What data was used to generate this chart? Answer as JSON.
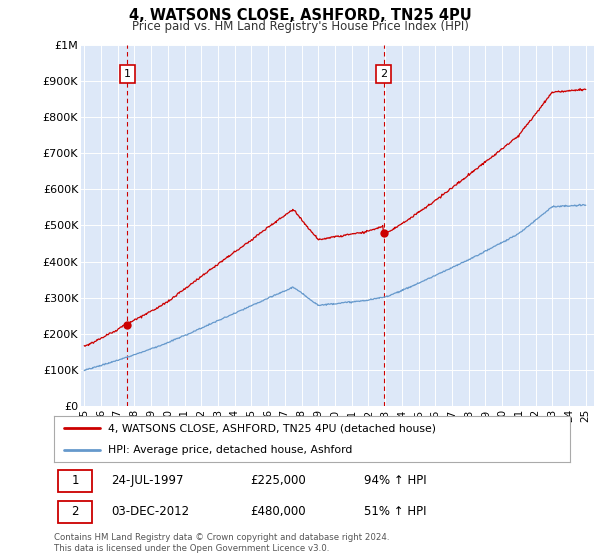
{
  "title": "4, WATSONS CLOSE, ASHFORD, TN25 4PU",
  "subtitle": "Price paid vs. HM Land Registry's House Price Index (HPI)",
  "background_color": "#ffffff",
  "plot_bg_color": "#dde8f8",
  "ylim": [
    0,
    1000000
  ],
  "yticks": [
    0,
    100000,
    200000,
    300000,
    400000,
    500000,
    600000,
    700000,
    800000,
    900000,
    1000000
  ],
  "ytick_labels": [
    "£0",
    "£100K",
    "£200K",
    "£300K",
    "£400K",
    "£500K",
    "£600K",
    "£700K",
    "£800K",
    "£900K",
    "£1M"
  ],
  "xticks": [
    1995,
    1996,
    1997,
    1998,
    1999,
    2000,
    2001,
    2002,
    2003,
    2004,
    2005,
    2006,
    2007,
    2008,
    2009,
    2010,
    2011,
    2012,
    2013,
    2014,
    2015,
    2016,
    2017,
    2018,
    2019,
    2020,
    2021,
    2022,
    2023,
    2024,
    2025
  ],
  "xtick_labels": [
    "95",
    "96",
    "97",
    "98",
    "99",
    "00",
    "01",
    "02",
    "03",
    "04",
    "05",
    "06",
    "07",
    "08",
    "09",
    "10",
    "11",
    "12",
    "13",
    "14",
    "15",
    "16",
    "17",
    "18",
    "19",
    "20",
    "21",
    "22",
    "23",
    "24",
    "25"
  ],
  "red_line_color": "#cc0000",
  "blue_line_color": "#6699cc",
  "dashed_line_color": "#cc0000",
  "sale1_year": 1997.56,
  "sale1_price": 225000,
  "sale2_year": 2012.92,
  "sale2_price": 480000,
  "legend_label_red": "4, WATSONS CLOSE, ASHFORD, TN25 4PU (detached house)",
  "legend_label_blue": "HPI: Average price, detached house, Ashford",
  "footer": "Contains HM Land Registry data © Crown copyright and database right 2024.\nThis data is licensed under the Open Government Licence v3.0."
}
